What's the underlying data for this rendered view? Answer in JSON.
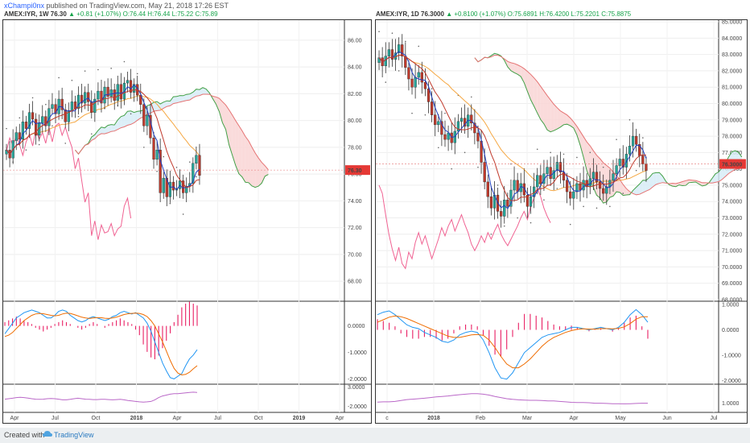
{
  "header": {
    "author": "xChampi0nx",
    "published": "published on TradingView.com, May 21, 2018 17:26 EST"
  },
  "footer": {
    "created_with": "Created with",
    "brand": "TradingView"
  },
  "colors": {
    "up": "#26a69a",
    "down": "#c0392b",
    "tenkan": "#1f3fbf",
    "kijun": "#c0392b",
    "lagging": "#f06292",
    "macd": "#2196f3",
    "signal": "#ef6c00",
    "hist": "#e91e63",
    "rsi": "#ba68c8",
    "cloud_bull": "#d7ecf7",
    "cloud_bear": "#f9d5d5"
  },
  "chart_data": [
    {
      "id": "weekly",
      "type": "candlestick",
      "symbol": "AMEX:IYR, 1W",
      "quote": {
        "last": "76.30",
        "change": "+0.81 (+1.07%)",
        "open": "O:76.44",
        "high": "H:76.44",
        "low": "L:75.22",
        "close": "C:75.89"
      },
      "price_label": "76.30",
      "price_ticks": [
        "86.00",
        "84.00",
        "82.00",
        "80.00",
        "78.00",
        "76.00",
        "74.00",
        "72.00",
        "70.00",
        "68.00"
      ],
      "price_range": [
        66.5,
        87.5
      ],
      "x_ticks": [
        "Apr",
        "Jul",
        "Oct",
        "2018",
        "Apr",
        "Jul",
        "Oct",
        "2019",
        "Apr"
      ],
      "macd_ticks": [
        "0.0000",
        "-1.0000",
        "-2.0000"
      ],
      "macd_range": [
        -2.2,
        0.9
      ],
      "rsi_ticks": [
        "3.0000",
        "-2.0000"
      ],
      "closes": [
        77.8,
        77.2,
        78.5,
        79.1,
        78.6,
        79.9,
        79.4,
        80.6,
        80.1,
        78.9,
        79.8,
        80.3,
        79.6,
        80.9,
        81.2,
        80.5,
        81.6,
        80.8,
        79.9,
        80.7,
        81.4,
        80.9,
        81.9,
        81.3,
        82.1,
        81.4,
        80.6,
        81.6,
        82.2,
        81.3,
        82.5,
        81.8,
        82.3,
        81.5,
        82.7,
        81.6,
        82.8,
        83.0,
        82.1,
        82.7,
        81.9,
        81.2,
        79.6,
        80.4,
        78.7,
        77.1,
        77.8,
        74.6,
        75.7,
        74.3,
        75.4,
        74.8,
        74.9,
        75.5,
        74.6,
        75.1,
        75.3,
        76.8,
        77.4,
        75.9
      ],
      "macd": [
        -0.3,
        -0.1,
        0.1,
        0.3,
        0.4,
        0.5,
        0.55,
        0.6,
        0.55,
        0.5,
        0.4,
        0.3,
        0.3,
        0.4,
        0.55,
        0.6,
        0.55,
        0.4,
        0.3,
        0.2,
        0.15,
        0.2,
        0.3,
        0.35,
        0.3,
        0.25,
        0.2,
        0.25,
        0.35,
        0.4,
        0.5,
        0.55,
        0.5,
        0.45,
        0.5,
        0.4,
        0.3,
        0.1,
        -0.2,
        -0.6,
        -1.0,
        -1.4,
        -1.7,
        -1.95,
        -2.0,
        -1.9,
        -1.8,
        -1.5,
        -1.25,
        -1.1,
        -0.9
      ],
      "signal": [
        -0.4,
        -0.35,
        -0.25,
        -0.1,
        0.05,
        0.2,
        0.3,
        0.4,
        0.45,
        0.47,
        0.46,
        0.43,
        0.4,
        0.38,
        0.4,
        0.45,
        0.48,
        0.47,
        0.43,
        0.38,
        0.33,
        0.3,
        0.28,
        0.3,
        0.31,
        0.31,
        0.29,
        0.28,
        0.3,
        0.33,
        0.38,
        0.43,
        0.46,
        0.47,
        0.48,
        0.47,
        0.43,
        0.35,
        0.2,
        0.0,
        -0.3,
        -0.6,
        -0.95,
        -1.3,
        -1.6,
        -1.78,
        -1.85,
        -1.83,
        -1.75,
        -1.62,
        -1.5
      ],
      "hist": [
        0.1,
        0.15,
        0.2,
        0.25,
        0.2,
        0.15,
        0.1,
        0.05,
        -0.05,
        -0.1,
        -0.15,
        -0.1,
        -0.05,
        0.05,
        0.1,
        0.15,
        0.1,
        0.05,
        0.0,
        -0.05,
        -0.1,
        -0.05,
        0.05,
        0.1,
        0.05,
        0.0,
        -0.05,
        0.05,
        0.1,
        0.15,
        0.2,
        0.15,
        0.1,
        0.05,
        -0.1,
        -0.25,
        -0.5,
        -0.7,
        -0.85,
        -0.9,
        -0.8,
        -0.6,
        -0.4,
        -0.2,
        0.1,
        0.3,
        0.5,
        0.6,
        0.65,
        0.6,
        0.55
      ],
      "rsi": [
        0.48,
        0.5,
        0.52,
        0.55,
        0.56,
        0.55,
        0.53,
        0.5,
        0.48,
        0.47,
        0.48,
        0.5,
        0.51,
        0.5,
        0.48,
        0.45,
        0.45,
        0.47,
        0.5,
        0.52,
        0.5,
        0.48,
        0.47,
        0.46,
        0.46,
        0.47,
        0.47,
        0.46,
        0.45,
        0.46,
        0.47,
        0.45,
        0.42,
        0.4,
        0.38,
        0.36,
        0.35,
        0.36,
        0.38,
        0.45,
        0.55,
        0.62,
        0.66,
        0.7,
        0.72,
        0.72,
        0.74,
        0.76,
        0.78,
        0.79,
        0.78
      ]
    },
    {
      "id": "daily",
      "type": "candlestick",
      "symbol": "AMEX:IYR, 1D",
      "quote": {
        "last": "76.3000",
        "change": "+0.8100 (+1.07%)",
        "open": "O:75.6891",
        "high": "H:76.4200",
        "low": "L:75.2201",
        "close": "C:75.8875"
      },
      "price_label": "76.3000",
      "price_ticks": [
        "85.0000",
        "84.0000",
        "83.0000",
        "82.0000",
        "81.0000",
        "80.0000",
        "79.0000",
        "78.0000",
        "77.0000",
        "76.0000",
        "75.0000",
        "74.0000",
        "73.0000",
        "72.0000",
        "71.0000",
        "70.0000",
        "69.0000",
        "68.0000"
      ],
      "price_range": [
        67.9,
        85.1
      ],
      "x_ticks": [
        "c",
        "2018",
        "Feb",
        "Mar",
        "Apr",
        "May",
        "Jun",
        "Jul"
      ],
      "macd_ticks": [
        "1.0000",
        "0.0000",
        "-1.0000",
        "-2.0000"
      ],
      "macd_range": [
        -2.15,
        1.1
      ],
      "rsi_ticks": [
        "1.0000"
      ],
      "closes": [
        82.8,
        82.3,
        82.9,
        83.3,
        82.7,
        83.1,
        83.6,
        82.9,
        82.2,
        81.5,
        81.0,
        81.6,
        81.9,
        81.3,
        80.9,
        80.1,
        79.3,
        78.7,
        78.9,
        78.1,
        77.8,
        78.2,
        77.6,
        78.3,
        78.9,
        79.1,
        78.6,
        79.3,
        78.8,
        78.2,
        77.7,
        76.4,
        75.2,
        74.3,
        73.6,
        74.4,
        73.4,
        73.1,
        74.1,
        73.7,
        74.7,
        75.3,
        74.6,
        75.1,
        74.4,
        73.7,
        74.3,
        74.9,
        75.6,
        75.1,
        75.7,
        76.1,
        75.4,
        75.9,
        76.4,
        75.8,
        75.3,
        74.6,
        74.2,
        74.6,
        75.1,
        74.7,
        75.3,
        74.9,
        75.4,
        75.8,
        75.2,
        74.8,
        74.5,
        74.9,
        75.3,
        75.7,
        76.2,
        76.6,
        76.1,
        76.9,
        77.4,
        78.0,
        77.5,
        76.8,
        76.3,
        75.9
      ],
      "macd": [
        0.6,
        0.7,
        0.75,
        0.6,
        0.4,
        0.2,
        0.1,
        0.05,
        -0.1,
        -0.2,
        -0.3,
        -0.45,
        -0.5,
        -0.4,
        -0.2,
        -0.1,
        -0.05,
        -0.1,
        -0.4,
        -0.9,
        -1.5,
        -1.9,
        -1.95,
        -1.7,
        -1.3,
        -0.9,
        -0.7,
        -0.5,
        -0.3,
        -0.2,
        -0.15,
        -0.1,
        0.0,
        0.1,
        0.1,
        0.05,
        0.0,
        0.05,
        0.1,
        0.05,
        0.0,
        0.1,
        0.3,
        0.6,
        0.8,
        0.6,
        0.3
      ],
      "signal": [
        0.3,
        0.4,
        0.5,
        0.55,
        0.52,
        0.45,
        0.35,
        0.25,
        0.15,
        0.05,
        -0.05,
        -0.15,
        -0.25,
        -0.3,
        -0.3,
        -0.25,
        -0.2,
        -0.18,
        -0.22,
        -0.4,
        -0.7,
        -1.05,
        -1.35,
        -1.5,
        -1.5,
        -1.35,
        -1.15,
        -0.9,
        -0.65,
        -0.45,
        -0.3,
        -0.2,
        -0.1,
        -0.03,
        0.02,
        0.04,
        0.03,
        0.03,
        0.05,
        0.05,
        0.04,
        0.06,
        0.12,
        0.25,
        0.42,
        0.52,
        0.52
      ],
      "hist": [
        0.3,
        0.25,
        0.2,
        0.1,
        -0.1,
        -0.2,
        -0.25,
        -0.25,
        -0.2,
        -0.2,
        -0.25,
        -0.3,
        -0.25,
        -0.1,
        0.1,
        0.15,
        0.15,
        0.1,
        -0.15,
        -0.45,
        -0.7,
        -0.75,
        -0.55,
        -0.2,
        0.2,
        0.45,
        0.45,
        0.4,
        0.35,
        0.25,
        0.15,
        0.1,
        0.1,
        0.12,
        0.08,
        0.0,
        -0.04,
        0.02,
        0.05,
        0.0,
        -0.05,
        0.05,
        0.2,
        0.35,
        0.4,
        0.1,
        -0.25
      ],
      "rsi": [
        0.35,
        0.36,
        0.36,
        0.38,
        0.42,
        0.46,
        0.48,
        0.5,
        0.52,
        0.55,
        0.58,
        0.6,
        0.62,
        0.65,
        0.68,
        0.7,
        0.72,
        0.72,
        0.7,
        0.66,
        0.6,
        0.55,
        0.5,
        0.47,
        0.45,
        0.44,
        0.43,
        0.43,
        0.42,
        0.4,
        0.4,
        0.38,
        0.36,
        0.34,
        0.33,
        0.33,
        0.32,
        0.3,
        0.3,
        0.29,
        0.28,
        0.28,
        0.27,
        0.28,
        0.29,
        0.3,
        0.3
      ]
    }
  ]
}
